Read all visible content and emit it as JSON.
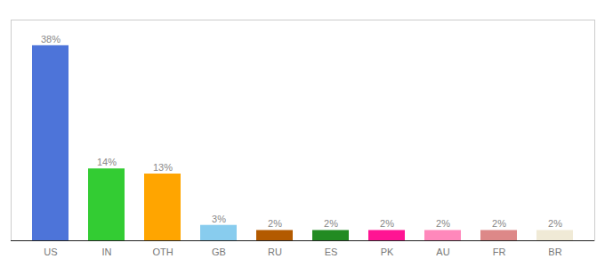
{
  "chart_data": {
    "type": "bar",
    "categories": [
      "US",
      "IN",
      "OTH",
      "GB",
      "RU",
      "ES",
      "PK",
      "AU",
      "FR",
      "BR"
    ],
    "values": [
      38,
      14,
      13,
      3,
      2,
      2,
      2,
      2,
      2,
      2
    ],
    "value_labels": [
      "38%",
      "14%",
      "13%",
      "3%",
      "2%",
      "2%",
      "2%",
      "2%",
      "2%",
      "2%"
    ],
    "colors": [
      "#4d74d9",
      "#33cc33",
      "#ffa500",
      "#88ccee",
      "#b35a00",
      "#228b22",
      "#ff1493",
      "#ff88bb",
      "#dd8888",
      "#f0ead6"
    ],
    "ylim": [
      0,
      43
    ],
    "grid": false,
    "data_labels": true,
    "tick_labels": "x"
  }
}
